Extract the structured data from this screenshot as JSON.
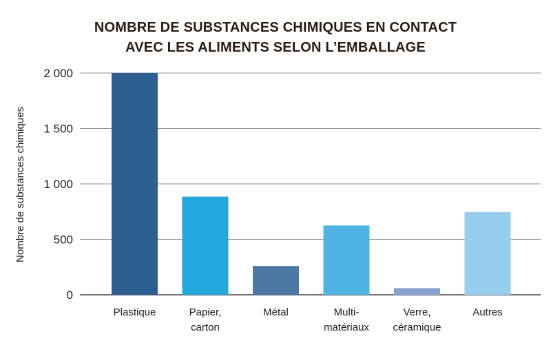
{
  "chart_data": {
    "type": "bar",
    "title": [
      "NOMBRE DE SUBSTANCES CHIMIQUES EN CONTACT",
      "AVEC LES ALIMENTS SELON L’EMBALLAGE"
    ],
    "ylabel": "Nombre de substances chimiques",
    "xlabel": "",
    "ylim": [
      0,
      2000
    ],
    "yticks": [
      0,
      500,
      1000,
      1500,
      2000
    ],
    "ytick_labels": [
      "0",
      "500",
      "1 000",
      "1 500",
      "2 000"
    ],
    "grid": true,
    "categories": [
      [
        "Plastique"
      ],
      [
        "Papier,",
        "carton"
      ],
      [
        "Métal"
      ],
      [
        "Multi-",
        "matériaux"
      ],
      [
        "Verre,",
        "céramique"
      ],
      [
        "Autres"
      ]
    ],
    "values": [
      2000,
      885,
      260,
      625,
      60,
      745
    ],
    "colors": [
      "#2e5f91",
      "#24a7dc",
      "#4d78a4",
      "#4fb4e4",
      "#8aa2cf",
      "#96cdec"
    ]
  }
}
